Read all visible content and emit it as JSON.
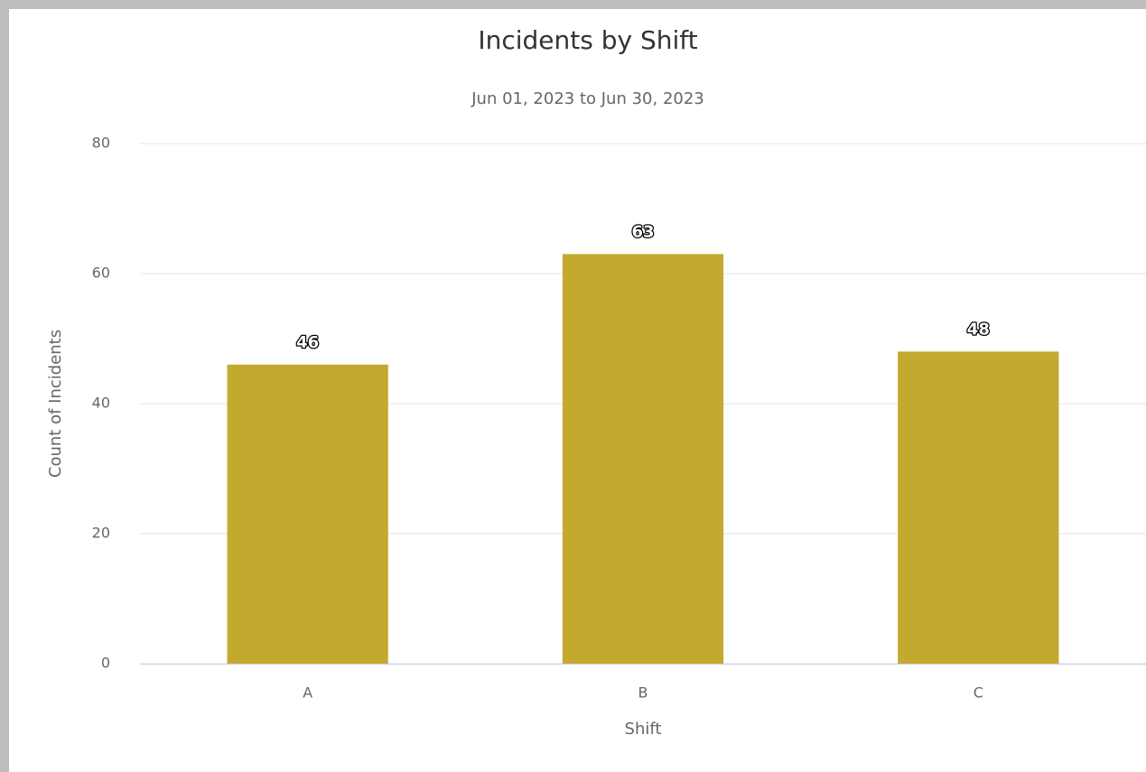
{
  "chart_data": {
    "type": "bar",
    "title": "Incidents by Shift",
    "subtitle": "Jun 01, 2023 to Jun 30, 2023",
    "x_label": "Shift",
    "y_label": "Count of Incidents",
    "categories": [
      "A",
      "B",
      "C"
    ],
    "values": [
      46,
      63,
      48
    ],
    "color": "#c4a92f",
    "ylim": [
      0,
      80
    ],
    "yticks": [
      0,
      20,
      40,
      60,
      80
    ],
    "grid": true
  }
}
